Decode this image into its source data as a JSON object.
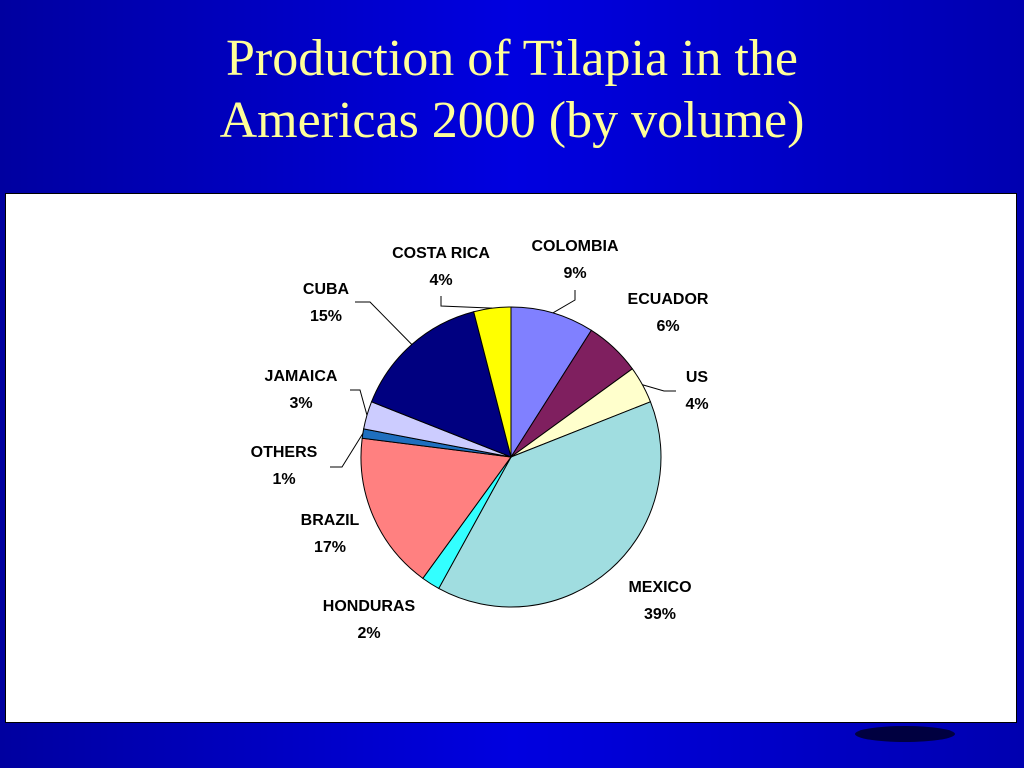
{
  "chart_data": {
    "type": "pie",
    "title": "Production of Tilapia in the Americas 2000 (by volume)",
    "categories": [
      "COLOMBIA",
      "ECUADOR",
      "US",
      "MEXICO",
      "HONDURAS",
      "BRAZIL",
      "OTHERS",
      "JAMAICA",
      "CUBA",
      "COSTA RICA"
    ],
    "values": [
      9,
      6,
      4,
      39,
      2,
      17,
      1,
      3,
      15,
      4
    ],
    "value_labels": [
      "9%",
      "6%",
      "4%",
      "39%",
      "2%",
      "17%",
      "1%",
      "3%",
      "15%",
      "4%"
    ],
    "colors": [
      "#8080ff",
      "#7f1f5f",
      "#ffffcc",
      "#a0dde0",
      "#33ffff",
      "#ff8080",
      "#1f6fbf",
      "#ccccff",
      "#000080",
      "#ffff00"
    ]
  }
}
